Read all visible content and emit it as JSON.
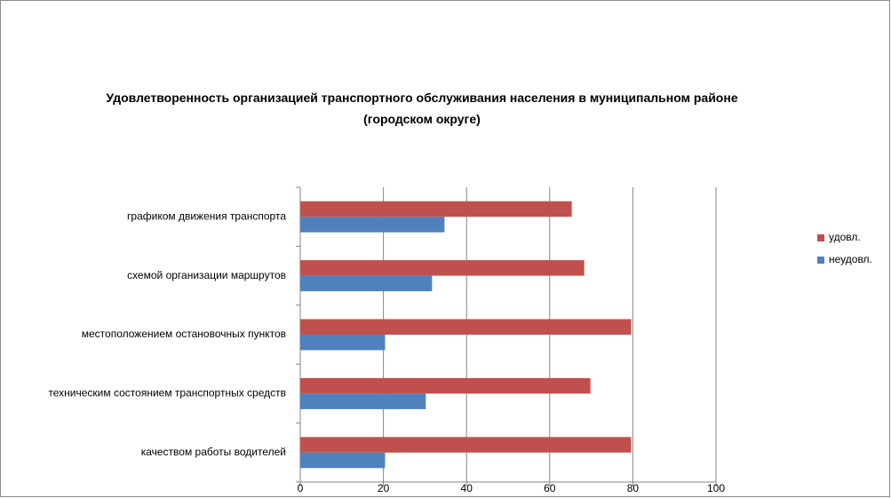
{
  "chart_data": {
    "type": "barh",
    "title": "Удовлетворенность организацией транспортного обслуживания населения в муниципальном районе (городском округе)",
    "categories": [
      "графиком движения  транспорта",
      "схемой организации маршрутов",
      "местоположением  остановочных пунктов",
      "техническим  состоянием транспортных средств",
      "качеством  работы водителей"
    ],
    "series": [
      {
        "name": "удовл.",
        "color": "#c0504d",
        "values": [
          65.3,
          68.3,
          79.6,
          69.8,
          79.6
        ]
      },
      {
        "name": "неудовл.",
        "color": "#4f81bd",
        "values": [
          34.7,
          31.7,
          20.4,
          30.2,
          20.4
        ]
      }
    ],
    "xlim": [
      0,
      100
    ],
    "xticks": [
      0,
      20,
      40,
      60,
      80,
      100
    ],
    "grid": true,
    "legend": "right"
  }
}
